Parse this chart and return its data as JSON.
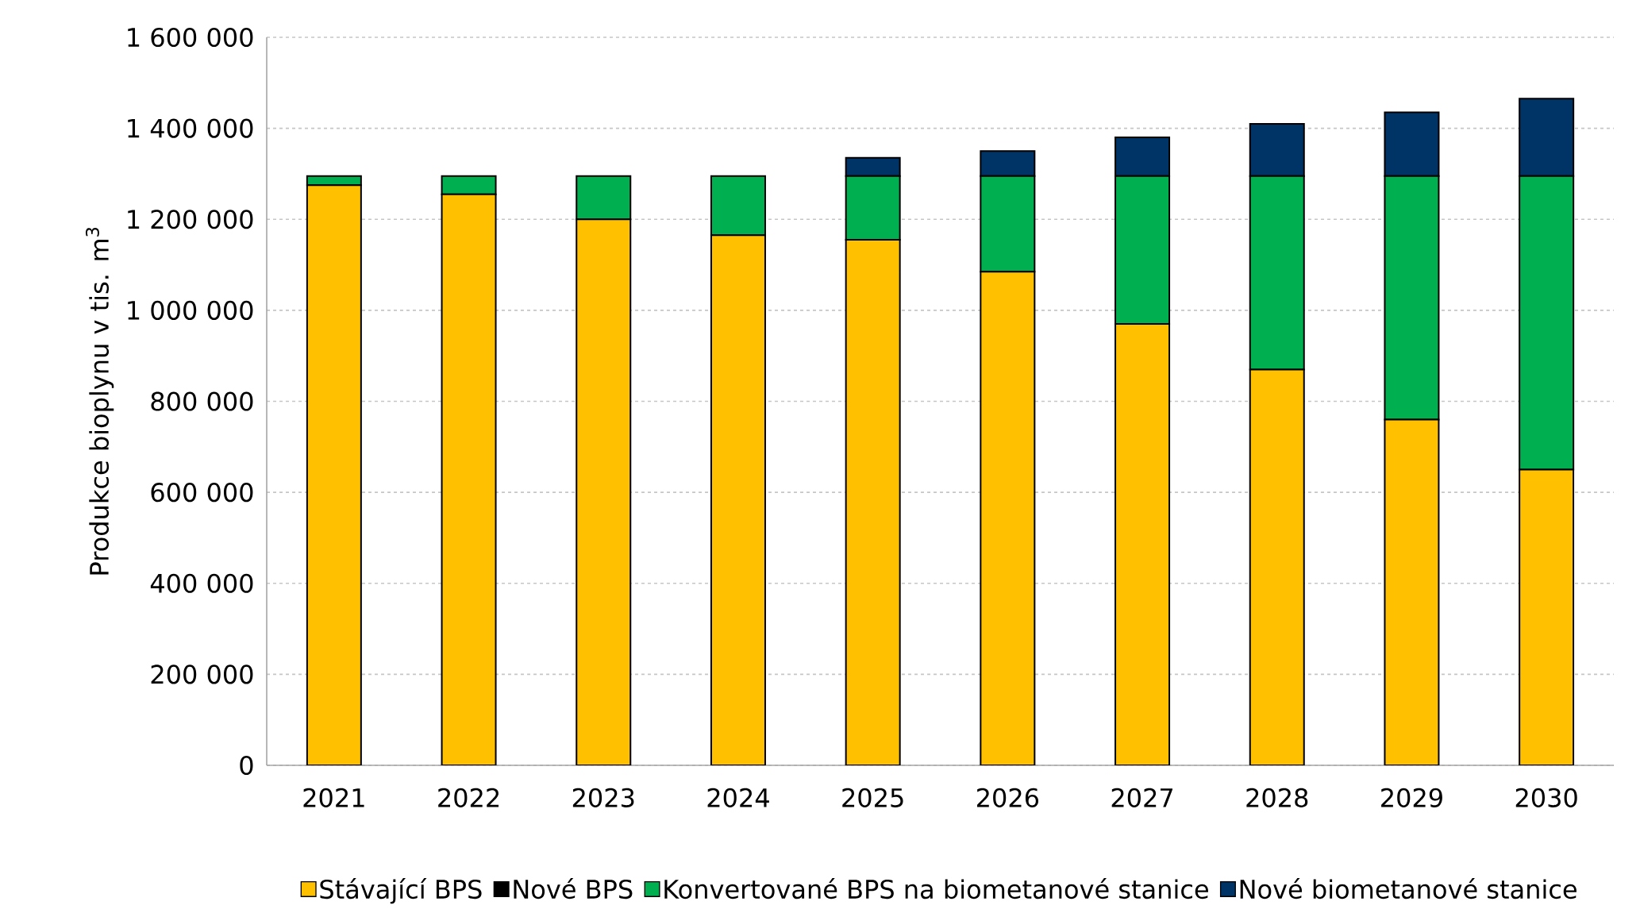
{
  "chart_data": {
    "type": "bar",
    "stacked": true,
    "ylabel": "Produkce bioplynu v tis. m$^{3}$",
    "categories": [
      "2021",
      "2022",
      "2023",
      "2024",
      "2025",
      "2026",
      "2027",
      "2028",
      "2029",
      "2030"
    ],
    "series": [
      {
        "name": "Stávající BPS",
        "color": "#ffc000",
        "values": [
          1275000,
          1255000,
          1200000,
          1165000,
          1155000,
          1085000,
          970000,
          870000,
          760000,
          650000
        ]
      },
      {
        "name": "Nové BPS",
        "color": "#000000",
        "values": [
          0,
          0,
          0,
          0,
          0,
          0,
          0,
          0,
          0,
          0
        ]
      },
      {
        "name": "Konvertované BPS na biometanové stanice",
        "color": "#00b050",
        "values": [
          20000,
          40000,
          95000,
          130000,
          140000,
          210000,
          325000,
          425000,
          535000,
          645000
        ]
      },
      {
        "name": "Nové biometanové stanice",
        "color": "#003366",
        "values": [
          0,
          0,
          0,
          0,
          40000,
          55000,
          85000,
          115000,
          140000,
          170000
        ]
      }
    ],
    "ylim": [
      0,
      1600000
    ],
    "yticks": [
      {
        "value": 0,
        "label": "0"
      },
      {
        "value": 200000,
        "label": "200 000"
      },
      {
        "value": 400000,
        "label": "400 000"
      },
      {
        "value": 600000,
        "label": "600 000"
      },
      {
        "value": 800000,
        "label": "800 000"
      },
      {
        "value": 1000000,
        "label": "1 000 000"
      },
      {
        "value": 1200000,
        "label": "1 200 000"
      },
      {
        "value": 1400000,
        "label": "1 400 000"
      },
      {
        "value": 1600000,
        "label": "1 600 000"
      }
    ],
    "grid": "y",
    "legend": "bottom"
  }
}
